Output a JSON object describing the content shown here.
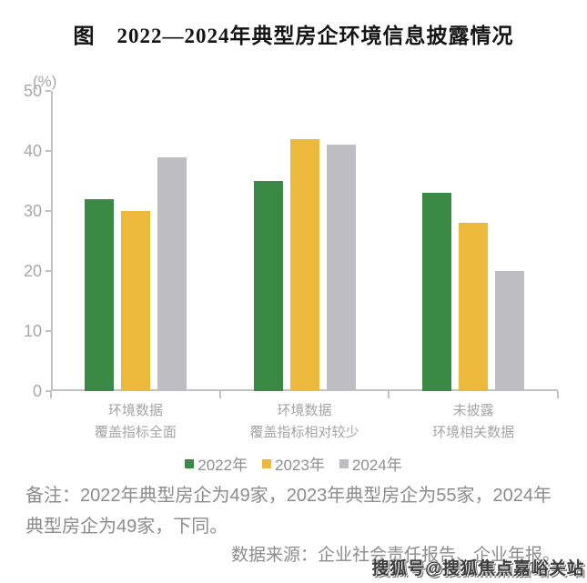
{
  "page": {
    "title": "图　2022—2024年典型房企环境信息披露情况",
    "watermark": "搜狐号@搜狐焦点嘉峪关站"
  },
  "notes": {
    "remark": "备注：2022年典型房企为49家，2023年典型房企为55家，2024年典型房企为49家，下同。",
    "source": "数据来源：企业社会责任报告、企业年报。"
  },
  "chart_data": {
    "type": "bar",
    "title": "图　2022—2024年典型房企环境信息披露情况",
    "unit_label": "(%)",
    "categories": [
      "环境数据覆盖指标全面",
      "环境数据覆盖指标相对较少",
      "未披露环境相关数据"
    ],
    "category_lines": [
      [
        "环境数据",
        "覆盖指标全面"
      ],
      [
        "环境数据",
        "覆盖指标相对较少"
      ],
      [
        "未披露",
        "环境相关数据"
      ]
    ],
    "series": [
      {
        "name": "2022年",
        "color": "#3A8A46",
        "values": [
          32,
          35,
          33
        ]
      },
      {
        "name": "2023年",
        "color": "#EDB93D",
        "values": [
          30,
          42,
          28
        ]
      },
      {
        "name": "2024年",
        "color": "#BEBEC2",
        "values": [
          39,
          41,
          20
        ]
      }
    ],
    "ylim": [
      0,
      50
    ],
    "yticks": [
      0,
      10,
      20,
      30,
      40,
      50
    ],
    "axis_color": "#c2c2c2",
    "grid": false,
    "legend_position": "bottom"
  }
}
